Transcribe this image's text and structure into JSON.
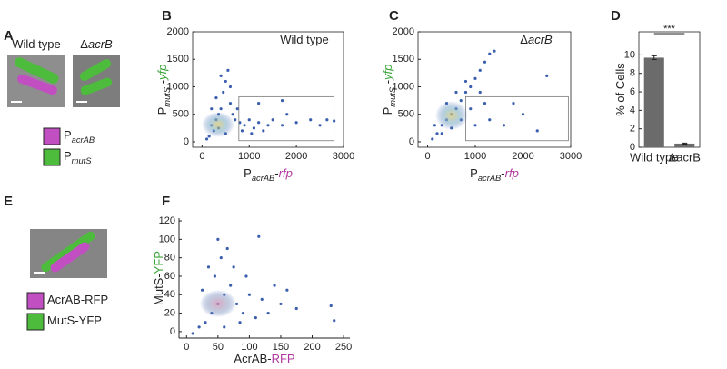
{
  "images": [
    {
      "panel": "A",
      "captions": [
        [
          {
            "text": "Wild type"
          }
        ],
        [
          {
            "text": "Δ"
          },
          {
            "text": "acrB",
            "italic": true
          }
        ]
      ],
      "legend": [
        {
          "color": "#c24fc2",
          "label": [
            {
              "text": "P"
            },
            {
              "text": "acrAB",
              "sub": true,
              "italic": true
            }
          ]
        },
        {
          "color": "#4dbb3c",
          "label": [
            {
              "text": "P"
            },
            {
              "text": "mutS",
              "sub": true,
              "italic": true
            }
          ]
        }
      ]
    },
    {
      "panel": "E",
      "captions": [],
      "legend": [
        {
          "color": "#c24fc2",
          "label": [
            {
              "text": "AcrAB-RFP"
            }
          ]
        },
        {
          "color": "#4dbb3c",
          "label": [
            {
              "text": "MutS-YFP"
            }
          ]
        }
      ]
    }
  ],
  "chart_data": [
    {
      "type": "scatter",
      "panel": "B",
      "box": true,
      "color": "#3b5fae",
      "annotation": [
        {
          "text": "Wild type"
        }
      ],
      "xlabel": [
        {
          "text": "P"
        },
        {
          "text": "acrAB",
          "sub": true,
          "italic": true
        },
        {
          "text": "-"
        },
        {
          "text": "rfp",
          "italic": true,
          "color": "#b0399f"
        }
      ],
      "ylabel": [
        {
          "text": "P"
        },
        {
          "text": "mutS",
          "sub": true,
          "italic": true
        },
        {
          "text": " -"
        },
        {
          "text": "yfp",
          "italic": true,
          "color": "#3aa53a"
        }
      ],
      "xlim": [
        -200,
        3000
      ],
      "ylim": [
        -100,
        2000
      ],
      "xticks": [
        0,
        1000,
        2000,
        3000
      ],
      "yticks": [
        0,
        500,
        1000,
        1500,
        2000
      ],
      "gate": {
        "x": [
          780,
          2800
        ],
        "y": [
          20,
          820
        ]
      },
      "x": [
        150,
        200,
        250,
        300,
        350,
        400,
        450,
        500,
        550,
        400,
        300,
        600,
        650,
        700,
        800,
        900,
        1000,
        1100,
        1200,
        1300,
        1400,
        1500,
        1700,
        1800,
        2000,
        2300,
        2500,
        2650,
        2800,
        1200,
        1700,
        100,
        500,
        750,
        850,
        1050,
        600,
        350,
        200
      ],
      "y": [
        100,
        300,
        200,
        400,
        250,
        600,
        900,
        1100,
        1300,
        1200,
        800,
        700,
        500,
        400,
        350,
        300,
        400,
        250,
        350,
        200,
        300,
        400,
        300,
        500,
        350,
        400,
        300,
        400,
        380,
        700,
        750,
        50,
        150,
        600,
        200,
        150,
        1000,
        500,
        600
      ]
    },
    {
      "type": "scatter",
      "panel": "C",
      "box": true,
      "color": "#3b5fae",
      "annotation": [
        {
          "text": "Δ"
        },
        {
          "text": "acrB",
          "italic": true
        }
      ],
      "xlabel": [
        {
          "text": "P"
        },
        {
          "text": "acrAB",
          "sub": true,
          "italic": true
        },
        {
          "text": "-"
        },
        {
          "text": "rfp",
          "italic": true,
          "color": "#b0399f"
        }
      ],
      "ylabel": [
        {
          "text": "P"
        },
        {
          "text": "mutS",
          "sub": true,
          "italic": true
        },
        {
          "text": " -"
        },
        {
          "text": "yfp",
          "italic": true,
          "color": "#3aa53a"
        }
      ],
      "xlim": [
        -200,
        3000
      ],
      "ylim": [
        -100,
        2000
      ],
      "xticks": [
        0,
        1000,
        2000,
        3000
      ],
      "yticks": [
        0,
        500,
        1000,
        1500,
        2000
      ],
      "gate": {
        "x": [
          800,
          2950
        ],
        "y": [
          20,
          820
        ]
      },
      "x": [
        100,
        200,
        300,
        400,
        500,
        600,
        700,
        800,
        900,
        1000,
        1100,
        1200,
        1300,
        1400,
        400,
        600,
        800,
        300,
        500,
        700,
        900,
        1100,
        1300,
        1600,
        1800,
        2000,
        2300,
        2500,
        1000,
        150,
        1200
      ],
      "y": [
        50,
        150,
        300,
        400,
        500,
        600,
        750,
        900,
        1000,
        1150,
        1300,
        1450,
        1600,
        1650,
        700,
        900,
        1100,
        150,
        250,
        400,
        600,
        900,
        400,
        300,
        700,
        500,
        200,
        1200,
        300,
        300,
        700
      ]
    },
    {
      "type": "bar",
      "panel": "D",
      "box": true,
      "color": "#6b6b6b",
      "ylabel": [
        {
          "text": "% of Cells"
        }
      ],
      "categories": [
        "Wild type",
        "ΔacrB"
      ],
      "values": [
        9.7,
        0.4
      ],
      "errors": [
        0.2,
        0.05
      ],
      "significance": "***",
      "ylim": [
        0,
        12.5
      ],
      "yticks": [
        0,
        2,
        4,
        6,
        8,
        10
      ]
    },
    {
      "type": "scatter",
      "panel": "F",
      "box": false,
      "color": "#3b5fae",
      "xlabel": [
        {
          "text": "AcrAB-"
        },
        {
          "text": "RFP",
          "color": "#b0399f"
        }
      ],
      "ylabel": [
        {
          "text": "MutS-"
        },
        {
          "text": "YFP",
          "color": "#3aa53a"
        }
      ],
      "xlim": [
        -12,
        260
      ],
      "ylim": [
        -7,
        123
      ],
      "xticks": [
        0,
        50,
        100,
        150,
        200,
        250
      ],
      "yticks": [
        0,
        20,
        40,
        60,
        80,
        100,
        120
      ],
      "x": [
        50,
        40,
        60,
        30,
        70,
        45,
        55,
        50,
        35,
        80,
        90,
        100,
        110,
        120,
        130,
        150,
        160,
        175,
        230,
        235,
        20,
        10,
        65,
        75,
        95,
        115,
        25,
        85,
        140,
        60
      ],
      "y": [
        30,
        20,
        40,
        10,
        50,
        60,
        80,
        100,
        70,
        30,
        20,
        40,
        15,
        35,
        20,
        30,
        45,
        25,
        28,
        12,
        5,
        -2,
        90,
        70,
        60,
        103,
        45,
        10,
        50,
        5
      ]
    }
  ]
}
